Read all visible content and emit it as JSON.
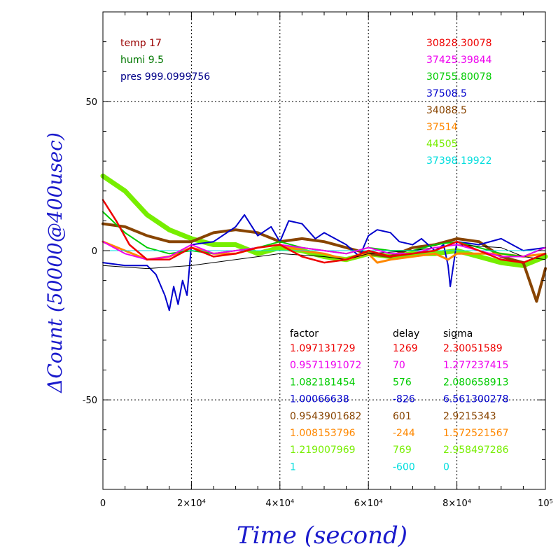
{
  "chart_data": {
    "type": "line",
    "xlabel": "Time (second)",
    "ylabel": "ΔCount (50000@400usec)",
    "xlim": [
      0,
      100000
    ],
    "ylim": [
      -80,
      80
    ],
    "grid": true,
    "x_ticks": [
      {
        "value": 0,
        "label": "0"
      },
      {
        "value": 20000,
        "label": "2×10⁴"
      },
      {
        "value": 40000,
        "label": "4×10⁴"
      },
      {
        "value": 60000,
        "label": "6×10⁴"
      },
      {
        "value": 80000,
        "label": "8×10⁴"
      },
      {
        "value": 100000,
        "label": "10⁵"
      }
    ],
    "y_ticks": [
      {
        "value": 50,
        "label": "50"
      },
      {
        "value": 0,
        "label": "0"
      },
      {
        "value": -50,
        "label": "-50"
      }
    ],
    "env": [
      {
        "text": "temp 17",
        "color": "#990000"
      },
      {
        "text": "humi 9.5",
        "color": "#007700"
      },
      {
        "text": "pres 999.0999756",
        "color": "#000088"
      }
    ],
    "counts": [
      {
        "text": "30828.30078",
        "color": "#ee0000"
      },
      {
        "text": "37425.39844",
        "color": "#ee00ee"
      },
      {
        "text": "30755.80078",
        "color": "#00cc00"
      },
      {
        "text": "37508.5",
        "color": "#0000cc"
      },
      {
        "text": "34088.5",
        "color": "#884400"
      },
      {
        "text": "37514",
        "color": "#ff8800"
      },
      {
        "text": "44505",
        "color": "#77ee00"
      },
      {
        "text": "37398.19922",
        "color": "#00dddd"
      }
    ],
    "table_headers": {
      "factor": "factor",
      "delay": "delay",
      "sigma": "sigma"
    },
    "table_rows": [
      {
        "factor": "1.097131729",
        "delay": "1269",
        "sigma": "2.30051589",
        "color": "#ee0000"
      },
      {
        "factor": "0.9571191072",
        "delay": "70",
        "sigma": "1.277237415",
        "color": "#ee00ee"
      },
      {
        "factor": "1.082181454",
        "delay": "576",
        "sigma": "2.080658913",
        "color": "#00cc00"
      },
      {
        "factor": "1.00066638",
        "delay": "-826",
        "sigma": "6.561300278",
        "color": "#0000cc"
      },
      {
        "factor": "0.9543901682",
        "delay": "601",
        "sigma": "2.9215343",
        "color": "#884400"
      },
      {
        "factor": "1.008153796",
        "delay": "-244",
        "sigma": "1.572521567",
        "color": "#ff8800"
      },
      {
        "factor": "1.219007969",
        "delay": "769",
        "sigma": "2.958497286",
        "color": "#77ee00"
      },
      {
        "factor": "1",
        "delay": "-600",
        "sigma": "0",
        "color": "#00dddd"
      }
    ],
    "series": [
      {
        "color": "#77ee00",
        "width": 7,
        "x": [
          0,
          5000,
          10000,
          15000,
          20000,
          25000,
          30000,
          35000,
          40000,
          45000,
          50000,
          55000,
          60000,
          65000,
          70000,
          75000,
          80000,
          85000,
          90000,
          95000,
          100000
        ],
        "y": [
          25,
          20,
          12,
          7,
          4,
          2,
          2,
          -1,
          1,
          0,
          -2,
          -3,
          -1,
          -2,
          -1,
          -1,
          0,
          -2,
          -4,
          -5,
          -2
        ]
      },
      {
        "color": "#884400",
        "width": 4,
        "x": [
          0,
          5000,
          10000,
          15000,
          20000,
          25000,
          30000,
          35000,
          40000,
          45000,
          50000,
          55000,
          60000,
          65000,
          70000,
          75000,
          80000,
          85000,
          90000,
          95000,
          98000,
          100000
        ],
        "y": [
          9,
          8,
          5,
          3,
          3,
          6,
          7,
          6,
          3,
          4,
          3,
          1,
          -1,
          -2,
          1,
          2,
          4,
          3,
          -2,
          -4,
          -17,
          -6
        ]
      },
      {
        "color": "#0000cc",
        "width": 2,
        "x": [
          0,
          5000,
          10000,
          12000,
          14000,
          15000,
          16000,
          17000,
          18000,
          19000,
          20000,
          25000,
          30000,
          32000,
          35000,
          38000,
          40000,
          42000,
          45000,
          48000,
          50000,
          55000,
          58000,
          60000,
          62000,
          65000,
          67000,
          70000,
          72000,
          75000,
          77000,
          78000,
          78500,
          80000,
          85000,
          90000,
          95000,
          100000
        ],
        "y": [
          -4,
          -5,
          -5,
          -8,
          -15,
          -20,
          -12,
          -18,
          -10,
          -15,
          2,
          3,
          8,
          12,
          5,
          8,
          3,
          10,
          9,
          4,
          6,
          2,
          -2,
          5,
          7,
          6,
          3,
          2,
          4,
          0,
          2,
          -5,
          -12,
          3,
          2,
          4,
          0,
          1
        ]
      },
      {
        "color": "#ff8800",
        "width": 3,
        "x": [
          0,
          5000,
          10000,
          15000,
          20000,
          25000,
          30000,
          35000,
          40000,
          45000,
          50000,
          55000,
          60000,
          62000,
          65000,
          70000,
          75000,
          78000,
          80000,
          85000,
          90000,
          95000,
          100000
        ],
        "y": [
          3,
          0,
          -3,
          -2,
          1,
          -1,
          -1,
          1,
          2,
          0,
          -1,
          -3,
          -1,
          -4,
          -3,
          -2,
          -1,
          -3,
          -1,
          -1,
          -1,
          -2,
          -1
        ]
      },
      {
        "color": "#00cc00",
        "width": 2,
        "x": [
          0,
          5000,
          10000,
          15000,
          20000,
          25000,
          30000,
          35000,
          40000,
          45000,
          50000,
          55000,
          60000,
          65000,
          70000,
          75000,
          80000,
          85000,
          90000,
          95000,
          100000
        ],
        "y": [
          13,
          6,
          1,
          -1,
          0,
          -1,
          0,
          1,
          3,
          1,
          0,
          -1,
          1,
          0,
          0,
          2,
          3,
          1,
          -1,
          -2,
          1
        ]
      },
      {
        "color": "#000000",
        "width": 1,
        "x": [
          0,
          10000,
          20000,
          30000,
          40000,
          50000,
          55000,
          60000,
          70000,
          80000,
          90000,
          95000,
          100000
        ],
        "y": [
          -5,
          -6,
          -5,
          -3,
          -1,
          -2,
          -3,
          -1,
          0,
          2,
          1,
          -2,
          -3
        ]
      },
      {
        "color": "#00dddd",
        "width": 1,
        "x": [
          0,
          100000
        ],
        "y": [
          0,
          0
        ]
      },
      {
        "color": "#ee00ee",
        "width": 2,
        "x": [
          0,
          5000,
          10000,
          15000,
          20000,
          25000,
          30000,
          35000,
          40000,
          45000,
          50000,
          55000,
          60000,
          65000,
          70000,
          75000,
          80000,
          85000,
          90000,
          95000,
          100000
        ],
        "y": [
          3,
          -1,
          -3,
          -2,
          2,
          -1,
          0,
          1,
          2,
          1,
          0,
          -1,
          1,
          -1,
          -1,
          1,
          2,
          0,
          -2,
          -2,
          1
        ]
      },
      {
        "color": "#ee0000",
        "width": 2.5,
        "x": [
          0,
          3000,
          6000,
          10000,
          15000,
          20000,
          25000,
          30000,
          35000,
          40000,
          45000,
          50000,
          55000,
          60000,
          65000,
          70000,
          75000,
          80000,
          85000,
          90000,
          95000,
          100000
        ],
        "y": [
          17,
          10,
          2,
          -3,
          -3,
          1,
          -2,
          -1,
          1,
          2,
          -2,
          -4,
          -3,
          0,
          -2,
          -1,
          0,
          3,
          0,
          -3,
          -4,
          -1
        ]
      }
    ]
  }
}
